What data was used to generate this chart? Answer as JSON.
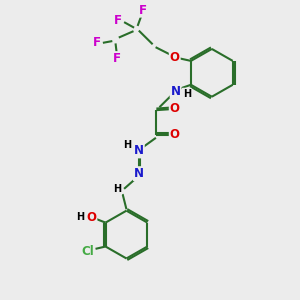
{
  "bg_color": "#ececec",
  "bond_color": "#2a6e2a",
  "bond_width": 1.5,
  "dbo": 0.06,
  "atom_colors": {
    "O": "#dd0000",
    "N": "#1a1acc",
    "F": "#cc00cc",
    "Cl": "#44aa44",
    "C": "#2a6e2a"
  },
  "fs": 8.5,
  "fs_small": 7.0,
  "xlim": [
    0,
    10
  ],
  "ylim": [
    0,
    10
  ]
}
